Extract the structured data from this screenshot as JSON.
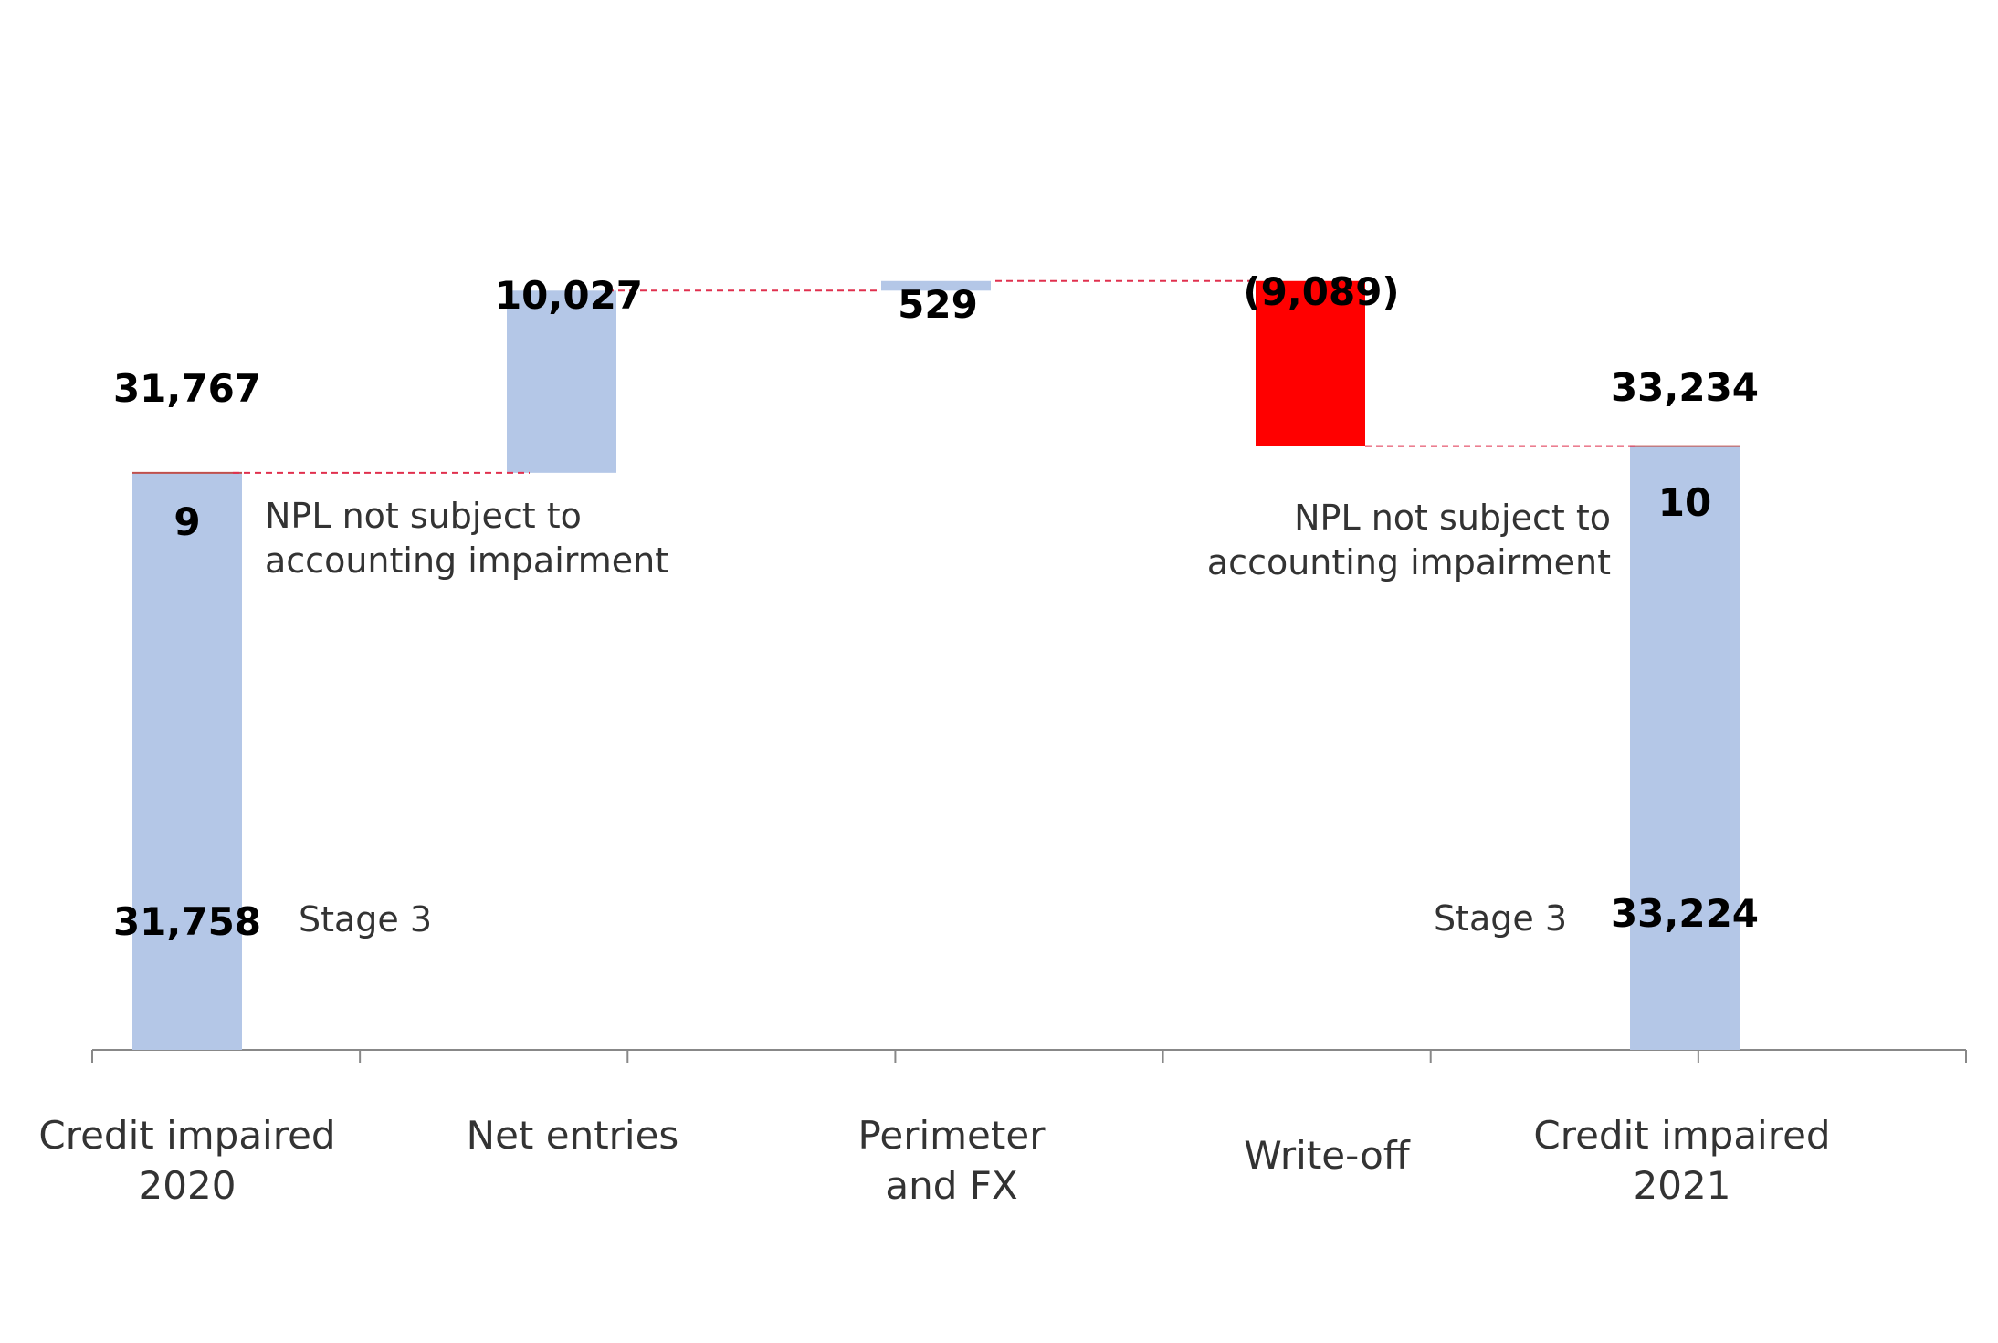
{
  "chart_data": {
    "type": "waterfall",
    "title": "",
    "xlabel": "",
    "ylabel": "",
    "ylim": [
      0,
      40000
    ],
    "grid": false,
    "legend": "none",
    "colors": {
      "bar": "#b4c7e7",
      "decrease": "#ff0000",
      "connector": "#e0304e",
      "axis": "#888888",
      "total_cap": "#c0504d"
    },
    "categories": [
      {
        "id": "c2020",
        "label_lines": [
          "Credit impaired",
          "2020"
        ],
        "kind": "total"
      },
      {
        "id": "net",
        "label_lines": [
          "Net entries"
        ],
        "kind": "delta"
      },
      {
        "id": "perim",
        "label_lines": [
          "Perimeter",
          "and FX"
        ],
        "kind": "delta"
      },
      {
        "id": "wo",
        "label_lines": [
          "Write-off"
        ],
        "kind": "delta"
      },
      {
        "id": "c2021",
        "label_lines": [
          "Credit impaired",
          "2021"
        ],
        "kind": "total"
      }
    ],
    "totals": {
      "c2020": {
        "total": 31767,
        "total_label": "31,767",
        "stage3": 31758,
        "stage3_label": "31,758",
        "npl": 9,
        "npl_label": "9"
      },
      "c2021": {
        "total": 33234,
        "total_label": "33,234",
        "stage3": 33224,
        "stage3_label": "33,224",
        "npl": 10,
        "npl_label": "10"
      }
    },
    "deltas": {
      "net": {
        "value": 10027,
        "label": "10,027"
      },
      "perim": {
        "value": 529,
        "label": "529"
      },
      "wo": {
        "value": -9089,
        "label": "(9,089)"
      }
    },
    "annotations": {
      "npl_text_lines": [
        "NPL not subject to",
        "accounting impairment"
      ],
      "stage3_text": "Stage 3"
    }
  }
}
